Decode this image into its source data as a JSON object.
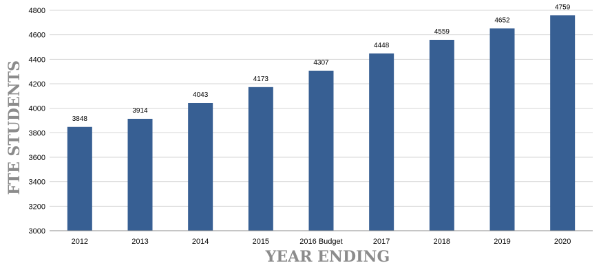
{
  "chart_data": {
    "type": "bar",
    "categories": [
      "2012",
      "2013",
      "2014",
      "2015",
      "2016 Budget",
      "2017",
      "2018",
      "2019",
      "2020"
    ],
    "values": [
      3848,
      3914,
      4043,
      4173,
      4307,
      4448,
      4559,
      4652,
      4759
    ],
    "data_labels": [
      "3848",
      "3914",
      "4043",
      "4173",
      "4307",
      "4448",
      "4559",
      "4652",
      "4759"
    ],
    "xlabel": "YEAR ENDING",
    "ylabel": "FTE STUDENTS",
    "ylim": [
      3000,
      4800
    ],
    "yticks": [
      3000,
      3200,
      3400,
      3600,
      3800,
      4000,
      4200,
      4400,
      4600,
      4800
    ],
    "ytick_labels": [
      "3000",
      "3200",
      "3400",
      "3600",
      "3800",
      "4000",
      "4200",
      "4400",
      "4600",
      "4800"
    ],
    "grid": true,
    "legend": "none",
    "colors": {
      "bar": "#375f93",
      "grid": "#d4d4d4",
      "axis": "#8c8c8c",
      "title": "#8c8c8c"
    }
  }
}
